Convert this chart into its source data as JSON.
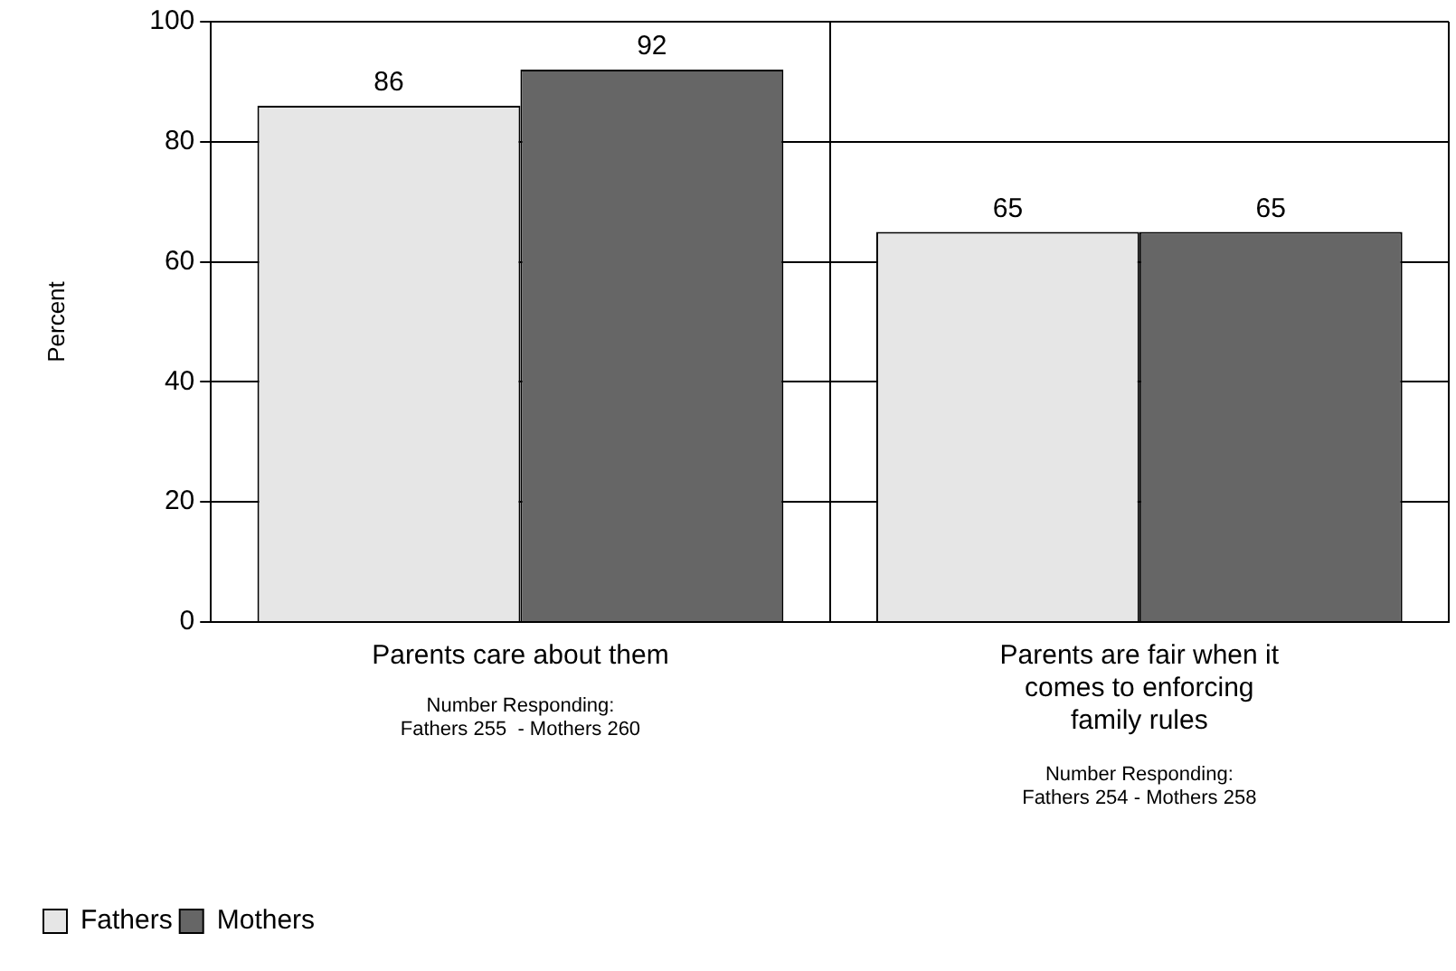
{
  "chart_data": {
    "type": "bar",
    "ylabel": "Percent",
    "categories": [
      "Parents care about them",
      "Parents are fair when it comes to enforcing family rules"
    ],
    "series": [
      {
        "name": "Fathers",
        "color": "#e6e6e6",
        "values": [
          86,
          65
        ]
      },
      {
        "name": "Mothers",
        "color": "#666666",
        "values": [
          92,
          65
        ]
      }
    ],
    "ylim": [
      0,
      100
    ],
    "yticks": [
      0,
      20,
      40,
      60,
      80,
      100
    ],
    "grid": true,
    "data_labels": true,
    "legend": "bottom left",
    "annotations": [
      "Number Responding:\nFathers 255  - Mothers 260",
      "Number Responding:\nFathers 254 - Mothers 258"
    ]
  }
}
